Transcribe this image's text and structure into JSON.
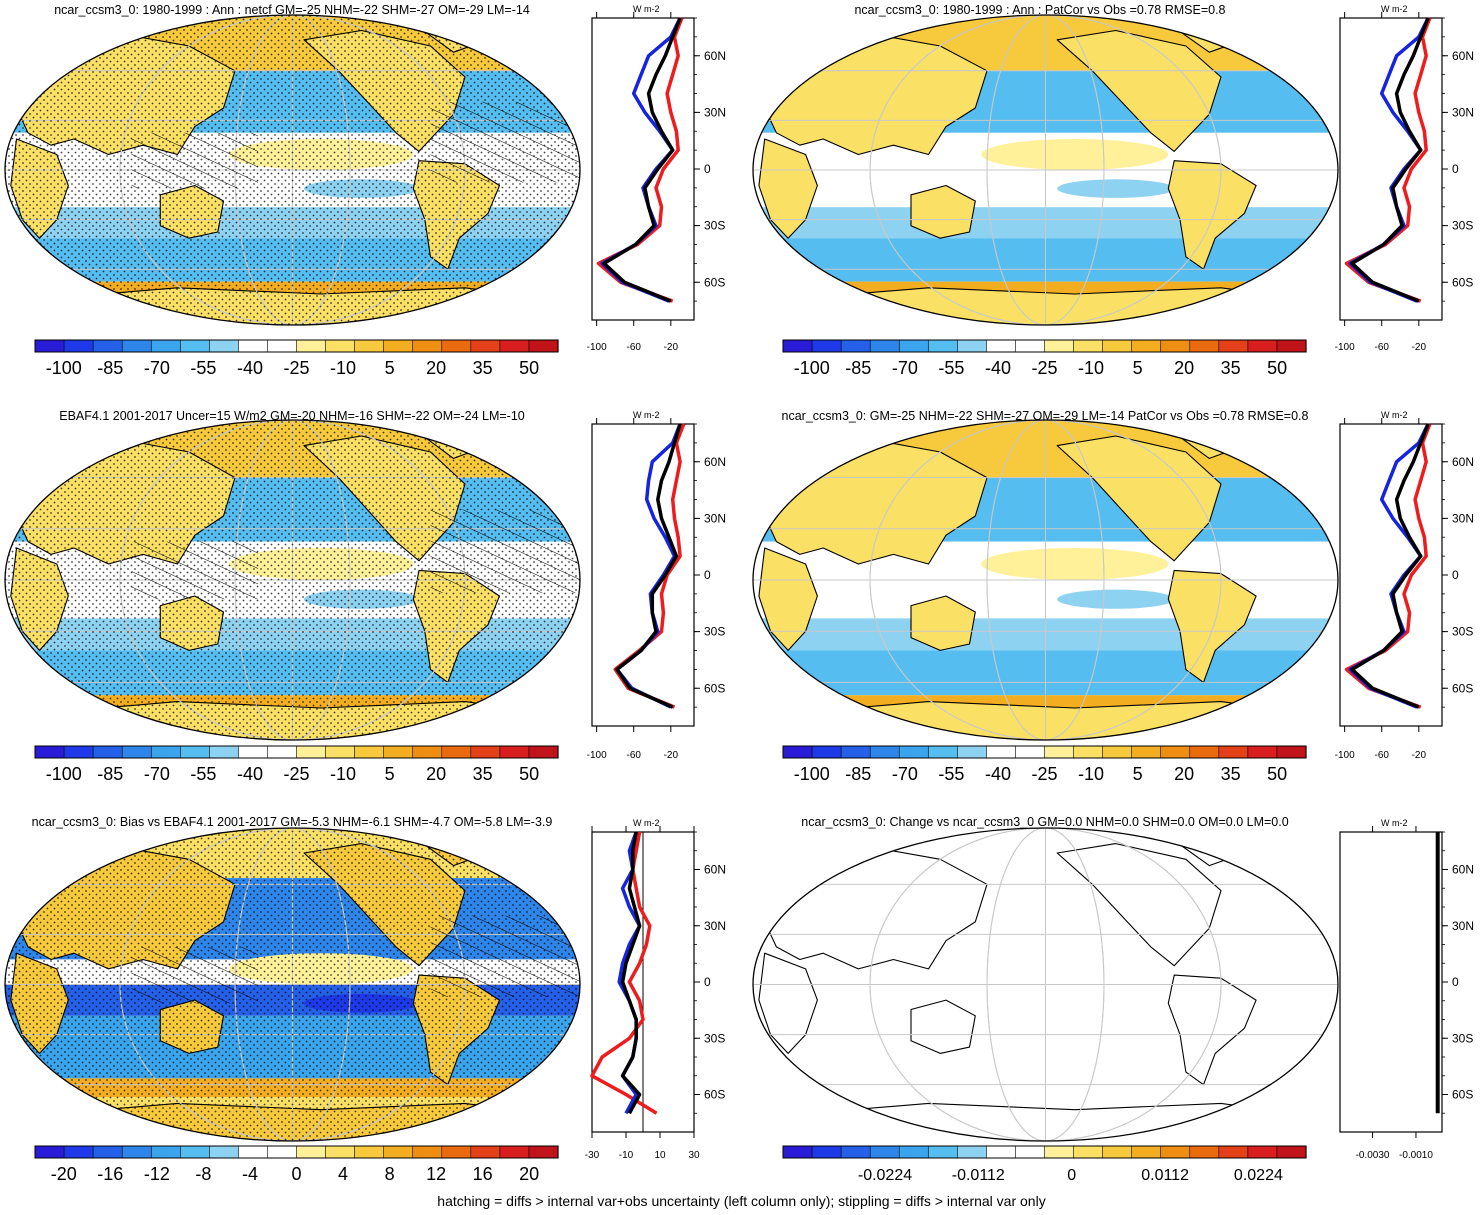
{
  "panels": [
    {
      "id": "p1",
      "title": "ncar_ccsm3_0: 1980-1999 : Ann : netcf GM=-25 NHM=-22 SHM=-27 OM=-29 LM=-14",
      "cb_labels": [
        "-100",
        "-85",
        "-70",
        "-55",
        "-40",
        "-25",
        "-10",
        "5",
        "20",
        "35",
        "50"
      ],
      "zonal_unit": "W m-2",
      "zonal_xticks": [
        "-100",
        "-60",
        "-20"
      ],
      "lat_ticks": [
        "60N",
        "30N",
        "0",
        "30S",
        "60S"
      ],
      "hatching": true,
      "stippling": true
    },
    {
      "id": "p2",
      "title": "ncar_ccsm3_0: 1980-1999 : Ann : PatCor vs Obs =0.78 RMSE=0.8",
      "cb_labels": [
        "-100",
        "-85",
        "-70",
        "-55",
        "-40",
        "-25",
        "-10",
        "5",
        "20",
        "35",
        "50"
      ],
      "zonal_unit": "W m-2",
      "zonal_xticks": [
        "-100",
        "-60",
        "-20"
      ],
      "lat_ticks": [
        "60N",
        "30N",
        "0",
        "30S",
        "60S"
      ],
      "hatching": false,
      "stippling": false
    },
    {
      "id": "p3",
      "title": "EBAF4.1 2001-2017 Uncer=15 W/m2 GM=-20 NHM=-16 SHM=-22 OM=-24 LM=-10",
      "cb_labels": [
        "-100",
        "-85",
        "-70",
        "-55",
        "-40",
        "-25",
        "-10",
        "5",
        "20",
        "35",
        "50"
      ],
      "zonal_unit": "W m-2",
      "zonal_xticks": [
        "-100",
        "-60",
        "-20"
      ],
      "lat_ticks": [
        "60N",
        "30N",
        "0",
        "30S",
        "60S"
      ],
      "hatching": true,
      "stippling": true
    },
    {
      "id": "p4",
      "title": "ncar_ccsm3_0: GM=-25 NHM=-22 SHM=-27 OM=-29 LM=-14 PatCor vs Obs =0.78 RMSE=0.8",
      "cb_labels": [
        "-100",
        "-85",
        "-70",
        "-55",
        "-40",
        "-25",
        "-10",
        "5",
        "20",
        "35",
        "50"
      ],
      "zonal_unit": "W m-2",
      "zonal_xticks": [
        "-100",
        "-60",
        "-20"
      ],
      "lat_ticks": [
        "60N",
        "30N",
        "0",
        "30S",
        "60S"
      ],
      "hatching": false,
      "stippling": false
    },
    {
      "id": "p5",
      "title": "ncar_ccsm3_0: Bias vs EBAF4.1 2001-2017 GM=-5.3 NHM=-6.1 SHM=-4.7 OM=-5.8 LM=-3.9",
      "cb_labels": [
        "-20",
        "-16",
        "-12",
        "-8",
        "-4",
        "0",
        "4",
        "8",
        "12",
        "16",
        "20"
      ],
      "zonal_unit": "W m-2",
      "zonal_xticks": [
        "-30",
        "-10",
        "10",
        "30"
      ],
      "lat_ticks": [
        "60N",
        "30N",
        "0",
        "30S",
        "60S"
      ],
      "hatching": true,
      "stippling": true
    },
    {
      "id": "p6",
      "title": "ncar_ccsm3_0: Change vs ncar_ccsm3_0 GM=0.0 NHM=0.0 SHM=0.0 OM=0.0 LM=0.0",
      "cb_labels": [
        "-0.0224",
        "-0.0112",
        "0",
        "0.0112",
        "0.0224"
      ],
      "zonal_unit": "W m-2",
      "zonal_xticks": [
        "-0.0030",
        "-0.0010"
      ],
      "lat_ticks": [
        "60N",
        "30N",
        "0",
        "30S",
        "60S"
      ],
      "hatching": false,
      "stippling": false
    }
  ],
  "footer": "hatching = diffs > internal var+obs uncertainty (left column only); stippling = diffs > internal var only",
  "colors": {
    "main_scale": [
      "#2a1bd6",
      "#1e3ae8",
      "#2560e8",
      "#2f86ea",
      "#3aa4ec",
      "#55bdf0",
      "#8ed2f2",
      "#ffffff",
      "#ffffff",
      "#fff19a",
      "#fbe066",
      "#f7c93c",
      "#f2ad20",
      "#ee8e12",
      "#ea6a10",
      "#e4401a",
      "#d81e1e",
      "#c0141a"
    ],
    "model_line": "#000000",
    "obs1_line": "#ee1c1c",
    "obs2_line": "#1424e0"
  },
  "chart_data": [
    {
      "type": "heatmap",
      "panel": "p1",
      "ylabel": "latitude",
      "zonal_lats": [
        80,
        70,
        60,
        50,
        40,
        30,
        20,
        10,
        0,
        -10,
        -20,
        -30,
        -40,
        -50,
        -60,
        -70
      ],
      "series": [
        {
          "name": "model",
          "values": [
            -10,
            -18,
            -26,
            -36,
            -44,
            -40,
            -30,
            -18,
            -34,
            -48,
            -44,
            -38,
            -58,
            -92,
            -70,
            -20
          ]
        },
        {
          "name": "obs1",
          "values": [
            -8,
            -16,
            -12,
            -18,
            -24,
            -20,
            -14,
            -12,
            -28,
            -36,
            -30,
            -32,
            -56,
            -98,
            -74,
            -18
          ]
        },
        {
          "name": "obs2",
          "values": [
            -10,
            -20,
            -44,
            -52,
            -60,
            -48,
            -32,
            -18,
            -36,
            -50,
            -44,
            -36,
            -58,
            -94,
            -72,
            -22
          ]
        }
      ]
    },
    {
      "type": "heatmap",
      "panel": "p2",
      "ylabel": "latitude",
      "zonal_lats": [
        80,
        70,
        60,
        50,
        40,
        30,
        20,
        10,
        0,
        -10,
        -20,
        -30,
        -40,
        -50,
        -60,
        -70
      ],
      "series": [
        {
          "name": "model",
          "values": [
            -10,
            -18,
            -26,
            -36,
            -44,
            -40,
            -30,
            -18,
            -34,
            -48,
            -44,
            -38,
            -58,
            -92,
            -70,
            -20
          ]
        },
        {
          "name": "obs1",
          "values": [
            -8,
            -16,
            -12,
            -18,
            -24,
            -20,
            -14,
            -12,
            -28,
            -36,
            -30,
            -32,
            -56,
            -98,
            -74,
            -18
          ]
        },
        {
          "name": "obs2",
          "values": [
            -10,
            -20,
            -44,
            -52,
            -60,
            -48,
            -32,
            -18,
            -36,
            -50,
            -44,
            -36,
            -58,
            -94,
            -72,
            -22
          ]
        }
      ]
    },
    {
      "type": "heatmap",
      "panel": "p3",
      "ylabel": "latitude",
      "zonal_lats": [
        80,
        70,
        60,
        50,
        40,
        30,
        20,
        10,
        0,
        -10,
        -20,
        -30,
        -40,
        -50,
        -60,
        -70
      ],
      "series": [
        {
          "name": "model",
          "values": [
            -10,
            -16,
            -22,
            -30,
            -34,
            -30,
            -22,
            -14,
            -26,
            -40,
            -40,
            -36,
            -52,
            -78,
            -64,
            -18
          ]
        },
        {
          "name": "obs1",
          "values": [
            -6,
            -14,
            -10,
            -14,
            -18,
            -16,
            -12,
            -10,
            -24,
            -30,
            -28,
            -30,
            -54,
            -80,
            -66,
            -16
          ]
        },
        {
          "name": "obs2",
          "values": [
            -10,
            -18,
            -40,
            -44,
            -46,
            -38,
            -26,
            -16,
            -28,
            -42,
            -40,
            -34,
            -52,
            -78,
            -62,
            -20
          ]
        }
      ]
    },
    {
      "type": "heatmap",
      "panel": "p4",
      "ylabel": "latitude",
      "zonal_lats": [
        80,
        70,
        60,
        50,
        40,
        30,
        20,
        10,
        0,
        -10,
        -20,
        -30,
        -40,
        -50,
        -60,
        -70
      ],
      "series": [
        {
          "name": "model",
          "values": [
            -10,
            -18,
            -26,
            -36,
            -44,
            -40,
            -30,
            -18,
            -34,
            -48,
            -44,
            -38,
            -58,
            -92,
            -70,
            -20
          ]
        },
        {
          "name": "obs1",
          "values": [
            -8,
            -16,
            -12,
            -18,
            -24,
            -20,
            -14,
            -12,
            -28,
            -36,
            -30,
            -32,
            -56,
            -98,
            -74,
            -18
          ]
        },
        {
          "name": "obs2",
          "values": [
            -10,
            -20,
            -44,
            -52,
            -60,
            -48,
            -32,
            -18,
            -36,
            -50,
            -44,
            -36,
            -58,
            -94,
            -72,
            -22
          ]
        }
      ]
    },
    {
      "type": "heatmap",
      "panel": "p5",
      "ylabel": "latitude",
      "zonal_lats": [
        80,
        70,
        60,
        50,
        40,
        30,
        20,
        10,
        0,
        -10,
        -20,
        -30,
        -40,
        -50,
        -60,
        -70
      ],
      "series": [
        {
          "name": "model",
          "values": [
            -4,
            -6,
            -6,
            -8,
            -5,
            -2,
            -6,
            -10,
            -12,
            -8,
            -4,
            -4,
            -6,
            -12,
            -2,
            -8
          ]
        },
        {
          "name": "obs1",
          "values": [
            -2,
            -4,
            -6,
            -4,
            -2,
            4,
            2,
            -2,
            -8,
            -2,
            0,
            -8,
            -24,
            -30,
            -10,
            8
          ]
        },
        {
          "name": "obs2",
          "values": [
            -4,
            -8,
            -6,
            -12,
            -8,
            -2,
            -8,
            -12,
            -14,
            -8,
            -4,
            -4,
            -6,
            -12,
            -4,
            -10
          ]
        }
      ]
    },
    {
      "type": "heatmap",
      "panel": "p6",
      "ylabel": "latitude",
      "zonal_lats": [
        80,
        -70
      ],
      "series": [
        {
          "name": "model",
          "values": [
            0,
            0
          ]
        }
      ]
    }
  ]
}
